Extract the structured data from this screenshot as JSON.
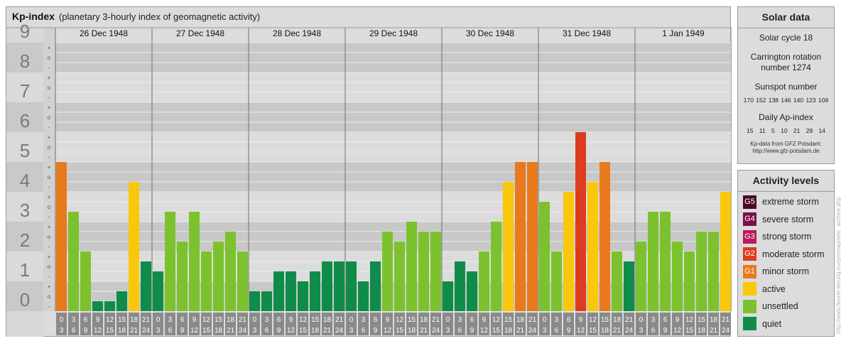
{
  "header": {
    "title": "Kp-index",
    "subtitle": "(planetary 3-hourly index of geomagnetic activity)"
  },
  "chart_data": {
    "type": "bar",
    "title": "Kp-index",
    "subtitle": "(planetary 3-hourly index of geomagnetic activity)",
    "ylim": [
      0,
      9
    ],
    "y_ticks": [
      "0",
      "1",
      "2",
      "3",
      "4",
      "5",
      "6",
      "7",
      "8",
      "9"
    ],
    "minor_tick_marks": [
      "+",
      "o",
      "-"
    ],
    "days": [
      "26 Dec 1948",
      "27 Dec 1948",
      "28 Dec 1948",
      "29 Dec 1948",
      "30 Dec 1948",
      "31 Dec 1948",
      "1 Jan 1949"
    ],
    "interval_labels": [
      [
        "0",
        "3"
      ],
      [
        "3",
        "6"
      ],
      [
        "6",
        "9"
      ],
      [
        "9",
        "12"
      ],
      [
        "12",
        "15"
      ],
      [
        "15",
        "18"
      ],
      [
        "18",
        "21"
      ],
      [
        "21",
        "24"
      ]
    ],
    "values": [
      [
        5.0,
        3.333,
        2.0,
        0.333,
        0.333,
        0.667,
        4.333,
        1.667
      ],
      [
        1.333,
        3.333,
        2.333,
        3.333,
        2.0,
        2.333,
        2.667,
        2.0
      ],
      [
        0.667,
        0.667,
        1.333,
        1.333,
        1.0,
        1.333,
        1.667,
        1.667
      ],
      [
        1.667,
        1.0,
        1.667,
        2.667,
        2.333,
        3.0,
        2.667,
        2.667
      ],
      [
        1.0,
        1.667,
        1.333,
        2.0,
        3.0,
        4.333,
        5.0,
        5.0
      ],
      [
        3.667,
        2.0,
        4.0,
        6.0,
        4.333,
        5.0,
        2.0,
        1.667
      ],
      [
        2.333,
        3.333,
        3.333,
        2.333,
        2.0,
        2.667,
        2.667,
        4.0
      ]
    ],
    "colors": {
      "quiet": "#108c4a",
      "unsettled": "#7cc22e",
      "active": "#f9c70c",
      "G1": "#e8791d",
      "G2": "#dc3d1e",
      "G3": "#b81b59",
      "G4": "#7a1047",
      "G5": "#4a0a28"
    }
  },
  "solar": {
    "heading": "Solar data",
    "cycle": "Solar cycle 18",
    "carrington_line1": "Carrington rotation",
    "carrington_line2": "number 1274",
    "sunspot_title": "Sunspot number",
    "sunspot_values": "170 152 138 146 140 123 108",
    "ap_title": "Daily Ap-index",
    "ap_values": "15 11 5 10 21 29 14",
    "credit_line1": "Kp-data from GFZ Potsdam:",
    "credit_line2": "http://www.gfz-potsdam.de"
  },
  "activity": {
    "heading": "Activity levels",
    "items": [
      {
        "badge": "G5",
        "label": "extreme storm",
        "color": "#4a0a28"
      },
      {
        "badge": "G4",
        "label": "severe storm",
        "color": "#7a1047"
      },
      {
        "badge": "G3",
        "label": "strong storm",
        "color": "#b81b59"
      },
      {
        "badge": "G2",
        "label": "moderate storm",
        "color": "#dc3d1e"
      },
      {
        "badge": "G1",
        "label": "minor storm",
        "color": "#e8791d"
      },
      {
        "badge": "",
        "label": "active",
        "color": "#f9c70c"
      },
      {
        "badge": "",
        "label": "unsettled",
        "color": "#7cc22e"
      },
      {
        "badge": "",
        "label": "quiet",
        "color": "#108c4a"
      }
    ]
  },
  "watermark": "http://www.fleuret-kleurig.eu/geomagnetic_archive.php"
}
